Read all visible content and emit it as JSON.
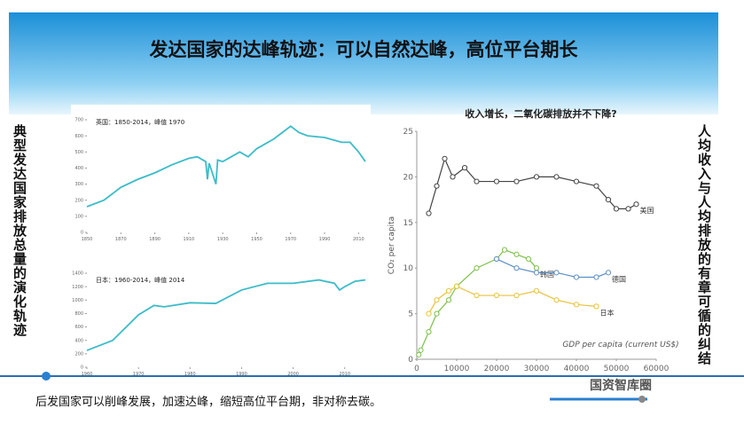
{
  "title": "发达国家的达峰轨迹：可以自然达峰，高位平台期长",
  "left_caption": "典型发达国家排放总量的演化轨迹",
  "right_caption": "人均收入与人均排放的有章可循的纠结",
  "bottom_text": "后发国家可以削峰发展，加速达峰，缩短高位平台期，非对称去碳。",
  "watermark": "国资智库圈",
  "chart_data": [
    {
      "type": "line",
      "title": "英国：1850-2014，峰值 1970",
      "series": [
        {
          "color": "#3cbcc8",
          "x": [
            1850,
            1860,
            1870,
            1880,
            1890,
            1900,
            1910,
            1915,
            1920,
            1921,
            1922,
            1926,
            1927,
            1930,
            1940,
            1945,
            1950,
            1960,
            1970,
            1975,
            1980,
            1990,
            2000,
            2005,
            2010,
            2014
          ],
          "values": [
            160,
            200,
            280,
            330,
            370,
            420,
            460,
            470,
            440,
            330,
            430,
            300,
            450,
            440,
            500,
            470,
            520,
            580,
            660,
            620,
            600,
            590,
            560,
            560,
            500,
            440
          ]
        }
      ],
      "xlim": [
        1850,
        2014
      ],
      "ylim": [
        0,
        700
      ],
      "yticks": [
        0,
        100,
        200,
        300,
        400,
        500,
        600,
        700
      ],
      "xticks": [
        1850,
        1870,
        1890,
        1910,
        1930,
        1950,
        1970,
        1990,
        2010
      ]
    },
    {
      "type": "line",
      "title": "日本：1960-2014，峰值 2014",
      "series": [
        {
          "color": "#3cbcc8",
          "x": [
            1960,
            1965,
            1970,
            1973,
            1975,
            1980,
            1985,
            1990,
            1995,
            2000,
            2005,
            2008,
            2009,
            2010,
            2012,
            2014
          ],
          "values": [
            250,
            400,
            780,
            920,
            900,
            960,
            950,
            1150,
            1250,
            1250,
            1300,
            1250,
            1150,
            1200,
            1280,
            1300
          ]
        }
      ],
      "xlim": [
        1960,
        2014
      ],
      "ylim": [
        0,
        1400
      ],
      "yticks": [
        0,
        200,
        400,
        600,
        800,
        1000,
        1200,
        1400
      ],
      "xticks": [
        1960,
        1970,
        1980,
        1990,
        2000,
        2010
      ]
    },
    {
      "type": "line",
      "title": "收入增长，二氧化碳排放并不下降?",
      "x_label": "GDP per capita (current US$)",
      "y_label": "CO₂ per capita",
      "series": [
        {
          "name": "美国",
          "color": "#444444",
          "x": [
            3000,
            5000,
            7000,
            9000,
            12000,
            15000,
            20000,
            25000,
            30000,
            35000,
            40000,
            45000,
            48000,
            50000,
            53000,
            55000
          ],
          "values": [
            16,
            19,
            22,
            20,
            21,
            19.5,
            19.5,
            19.5,
            20,
            20,
            19.5,
            19,
            17.5,
            16.5,
            16.5,
            17
          ]
        },
        {
          "name": "韩国",
          "color": "#7cc04a",
          "x": [
            500,
            1000,
            3000,
            5000,
            8000,
            10000,
            15000,
            20000,
            22000,
            25000,
            28000,
            30000
          ],
          "values": [
            0.5,
            1,
            3,
            5,
            6.5,
            8,
            10,
            11,
            12,
            11.5,
            11,
            10
          ]
        },
        {
          "name": "德国",
          "color": "#5b8fc7",
          "x": [
            20000,
            25000,
            30000,
            35000,
            40000,
            45000,
            48000
          ],
          "values": [
            11,
            10,
            9.5,
            9.5,
            9,
            9,
            9.5
          ]
        },
        {
          "name": "日本",
          "color": "#e8c23a",
          "x": [
            3000,
            5000,
            8000,
            10000,
            15000,
            20000,
            25000,
            30000,
            35000,
            40000,
            45000
          ],
          "values": [
            5,
            6.5,
            7.5,
            8,
            7,
            7,
            7,
            7.5,
            6.5,
            6,
            5.8
          ]
        }
      ],
      "xlim": [
        0,
        60000
      ],
      "ylim": [
        0,
        25
      ],
      "yticks": [
        0,
        5,
        10,
        15,
        20,
        25
      ],
      "xticks": [
        0,
        10000,
        20000,
        30000,
        40000,
        50000,
        60000
      ]
    }
  ]
}
